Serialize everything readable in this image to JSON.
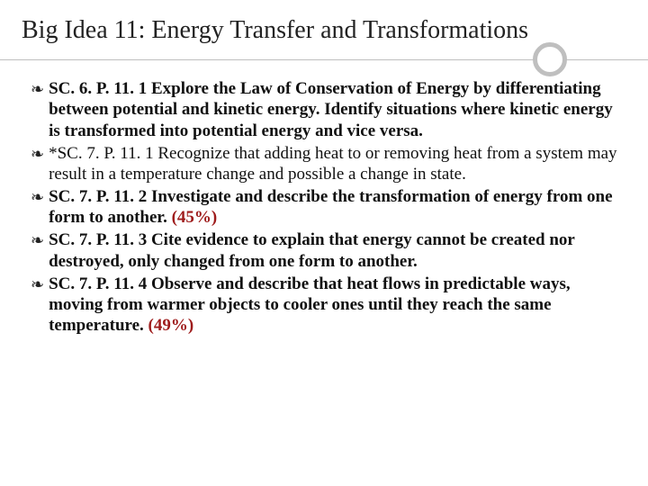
{
  "slide": {
    "title": "Big Idea 11: Energy Transfer and Transformations",
    "title_fontsize": 28,
    "title_color": "#222222",
    "rule_color": "#bfbfbf",
    "circle_border_color": "#bfbfbf",
    "circle_border_width": 5,
    "background_color": "#ffffff",
    "bullet_glyph": "❧",
    "bullet_color": "#222222",
    "body_fontsize": 19,
    "body_color": "#111111",
    "pct_color": "#9e1b1b",
    "items": [
      {
        "code": "SC. 6. P. 11. 1",
        "bold_text": " Explore the Law of Conservation of Energy by differentiating between potential and kinetic energy. Identify situations where kinetic energy is transformed into potential energy and vice versa.",
        "plain_text": "",
        "pct": "",
        "bold": true
      },
      {
        "code": "*SC. 7. P. 11. 1",
        "bold_text": "",
        "plain_text": " Recognize that adding heat to or removing heat from a system may result in a temperature change and possible a change in state.",
        "pct": "",
        "bold": false
      },
      {
        "code": "SC. 7. P. 11. 2",
        "bold_text": " Investigate and describe the transformation of energy from one form to another. ",
        "plain_text": "",
        "pct": "(45%)",
        "bold": true
      },
      {
        "code": "SC. 7. P. 11. 3",
        "bold_text": " Cite evidence to explain that energy cannot be created nor destroyed, only changed from one form to another.",
        "plain_text": "",
        "pct": "",
        "bold": true
      },
      {
        "code": "SC. 7. P. 11. 4",
        "bold_text": " Observe and describe that heat flows in predictable ways, moving from warmer objects to cooler ones until they reach the same temperature. ",
        "plain_text": "",
        "pct": "(49%)",
        "bold": true
      }
    ]
  }
}
